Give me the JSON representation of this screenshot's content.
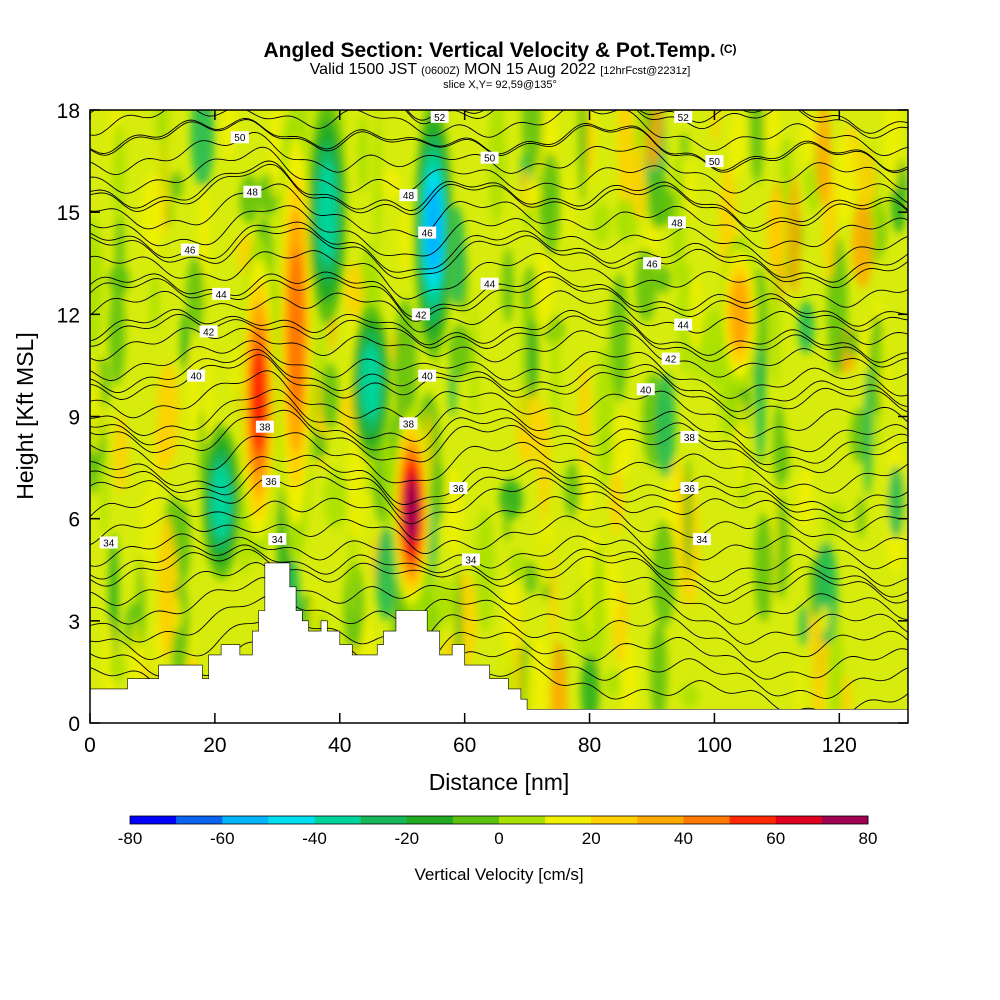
{
  "title": {
    "main": "Angled Section: Vertical Velocity & Pot.Temp.",
    "copyright": "(C)",
    "valid_prefix": "Valid 1500 JST",
    "utc": "(0600Z)",
    "valid_date": "MON 15 Aug 2022",
    "forecast": "[12hrFcst@2231z]",
    "slice": "slice X,Y= 92,59@135°"
  },
  "chart_data": {
    "type": "heatmap",
    "xlabel": "Distance [nm]",
    "ylabel": "Height [Kft MSL]",
    "xlim": [
      0,
      131
    ],
    "ylim": [
      0,
      18
    ],
    "x_ticks": [
      0,
      20,
      40,
      60,
      80,
      100,
      120
    ],
    "y_ticks": [
      0,
      3,
      6,
      9,
      12,
      15,
      18
    ],
    "colorbar": {
      "label": "Vertical Velocity [cm/s]",
      "min": -80,
      "max": 80,
      "step": 10,
      "ticks": [
        -80,
        -60,
        -40,
        -20,
        0,
        20,
        40,
        60,
        80
      ],
      "colors": [
        "#0000ff",
        "#0a64f0",
        "#00b4ff",
        "#00e0f0",
        "#00d49a",
        "#18b85a",
        "#22aa22",
        "#5cc010",
        "#a8e000",
        "#f0f000",
        "#ffd000",
        "#ffa800",
        "#ff7800",
        "#ff2800",
        "#e00020",
        "#a00050",
        "#6a0080"
      ]
    },
    "terrain": [
      [
        0,
        1
      ],
      [
        6,
        1.3
      ],
      [
        10,
        1.3
      ],
      [
        11,
        1.7
      ],
      [
        16,
        1.7
      ],
      [
        18,
        1.3
      ],
      [
        19,
        2
      ],
      [
        21,
        2.3
      ],
      [
        23,
        2.3
      ],
      [
        24,
        2
      ],
      [
        26,
        2.7
      ],
      [
        27,
        3.3
      ],
      [
        28,
        4.7
      ],
      [
        31,
        4.7
      ],
      [
        32,
        4
      ],
      [
        33,
        3.3
      ],
      [
        34,
        3
      ],
      [
        35,
        2.7
      ],
      [
        37,
        3
      ],
      [
        38,
        2.7
      ],
      [
        40,
        2.3
      ],
      [
        42,
        2
      ],
      [
        44,
        2
      ],
      [
        46,
        2.3
      ],
      [
        47,
        2.7
      ],
      [
        49,
        3.3
      ],
      [
        52,
        3.3
      ],
      [
        54,
        2.7
      ],
      [
        56,
        2
      ],
      [
        58,
        2.3
      ],
      [
        60,
        1.7
      ],
      [
        62,
        1.7
      ],
      [
        64,
        1.3
      ],
      [
        66,
        1.3
      ],
      [
        67,
        1
      ],
      [
        69,
        0.7
      ],
      [
        70,
        0.4
      ],
      [
        75,
        0.4
      ],
      [
        131,
        0.4
      ]
    ],
    "theta_contours": [
      {
        "label": "34",
        "base": 4.7,
        "labels_at": [
          [
            3,
            5.3
          ],
          [
            30,
            5.4
          ],
          [
            61,
            4.8
          ],
          [
            98,
            5.4
          ]
        ]
      },
      {
        "label": "36",
        "base": 7.0,
        "labels_at": [
          [
            29,
            7.1
          ],
          [
            59,
            6.9
          ],
          [
            96,
            6.9
          ]
        ]
      },
      {
        "label": "38",
        "base": 8.6,
        "labels_at": [
          [
            28,
            8.7
          ],
          [
            51,
            8.8
          ],
          [
            96,
            8.4
          ]
        ]
      },
      {
        "label": "40",
        "base": 10.2,
        "labels_at": [
          [
            17,
            10.2
          ],
          [
            54,
            10.2
          ],
          [
            89,
            9.8
          ]
        ]
      },
      {
        "label": "42",
        "base": 11.5,
        "labels_at": [
          [
            19,
            11.5
          ],
          [
            53,
            12.0
          ],
          [
            93,
            10.7
          ]
        ]
      },
      {
        "label": "44",
        "base": 12.6,
        "labels_at": [
          [
            21,
            12.6
          ],
          [
            64,
            12.9
          ],
          [
            95,
            11.7
          ]
        ]
      },
      {
        "label": "46",
        "base": 14.0,
        "labels_at": [
          [
            16,
            13.9
          ],
          [
            54,
            14.4
          ],
          [
            90,
            13.5
          ]
        ]
      },
      {
        "label": "48",
        "base": 15.6,
        "labels_at": [
          [
            26,
            15.6
          ],
          [
            51,
            15.5
          ],
          [
            94,
            14.7
          ]
        ]
      },
      {
        "label": "50",
        "base": 17.2,
        "labels_at": [
          [
            24,
            17.2
          ],
          [
            64,
            16.6
          ],
          [
            100,
            16.5
          ]
        ]
      },
      {
        "label": "52",
        "base": 18.4,
        "labels_at": [
          [
            56,
            17.8
          ],
          [
            95,
            17.8
          ]
        ]
      }
    ],
    "updraft_cores_cm_s": [
      {
        "x": 27,
        "z_range": [
          5,
          14
        ],
        "peak": 60
      },
      {
        "x": 33,
        "z_range": [
          5,
          18
        ],
        "peak": 50
      },
      {
        "x": 51.5,
        "z_range": [
          3.5,
          9
        ],
        "peak": 80
      },
      {
        "x": 104,
        "z_range": [
          10,
          14
        ],
        "peak": 40
      }
    ],
    "downdraft_cores_cm_s": [
      {
        "x": 21,
        "z_range": [
          4.5,
          8.5
        ],
        "peak": -40
      },
      {
        "x": 38,
        "z_range": [
          12,
          18
        ],
        "peak": -40
      },
      {
        "x": 45,
        "z_range": [
          8,
          12
        ],
        "peak": -40
      },
      {
        "x": 55,
        "z_range": [
          11,
          18
        ],
        "peak": -60
      }
    ]
  }
}
